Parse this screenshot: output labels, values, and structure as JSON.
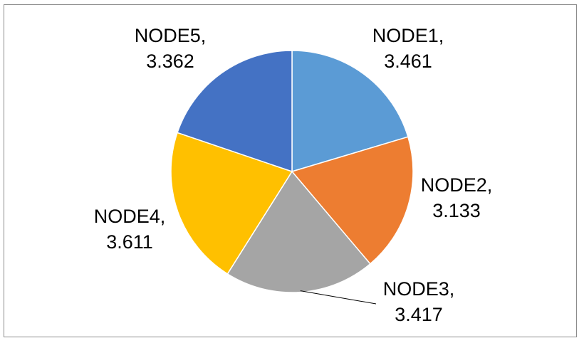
{
  "chart_data": {
    "type": "pie",
    "title": "",
    "categories": [
      "NODE1",
      "NODE2",
      "NODE3",
      "NODE4",
      "NODE5"
    ],
    "values": [
      3.461,
      3.133,
      3.417,
      3.611,
      3.362
    ],
    "labels": [
      {
        "category": "NODE1,",
        "value": "3.461"
      },
      {
        "category": "NODE2,",
        "value": "3.133"
      },
      {
        "category": "NODE3,",
        "value": "3.417"
      },
      {
        "category": "NODE4,",
        "value": "3.611"
      },
      {
        "category": "NODE5,",
        "value": "3.362"
      }
    ],
    "colors": [
      "#5B9BD5",
      "#ED7D31",
      "#A5A5A5",
      "#FFC000",
      "#4472C4"
    ],
    "legend": "none",
    "start_angle": "12 o'clock",
    "direction": "clockwise"
  }
}
